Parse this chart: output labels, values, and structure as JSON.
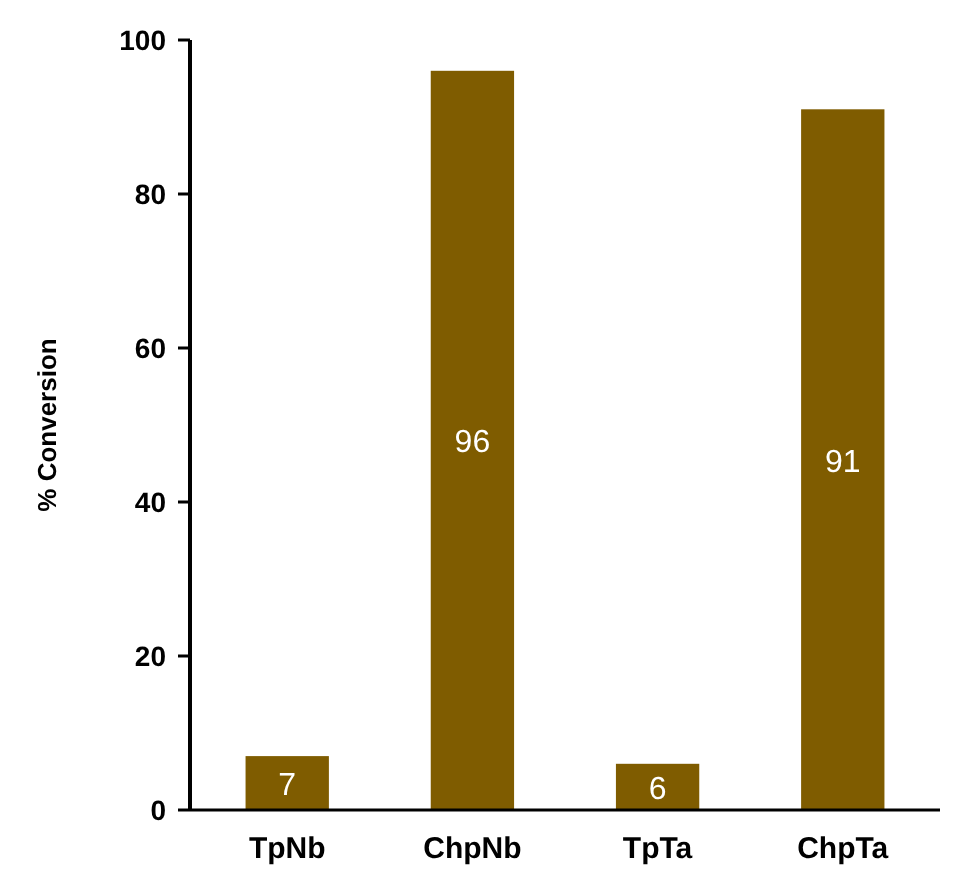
{
  "chart_data": {
    "type": "bar",
    "ylabel": "% Conversion",
    "categories": [
      "TpNb",
      "ChpNb",
      "TpTa",
      "ChpTa"
    ],
    "values": [
      7,
      96,
      6,
      91
    ],
    "color": "#7f5c00",
    "ylim": [
      0,
      100
    ],
    "yticks": [
      0,
      20,
      40,
      60,
      80,
      100
    ],
    "data_labels": true
  }
}
